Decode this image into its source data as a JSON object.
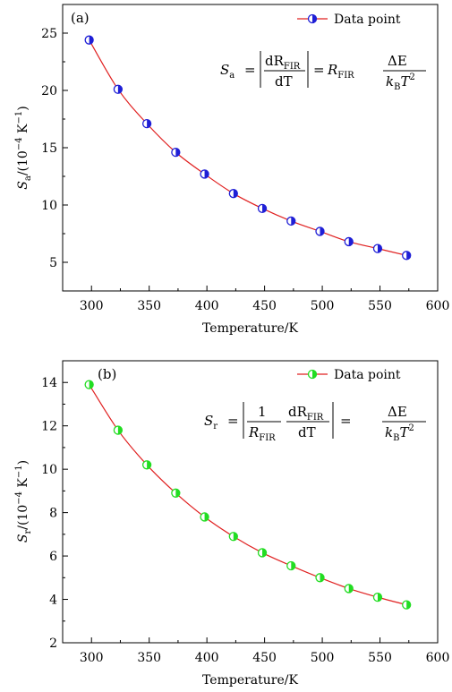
{
  "chart_data": [
    {
      "type": "line",
      "panel_label": "(a)",
      "xlabel": "Temperature/K",
      "ylabel": "S_a/(10^-4 K^-1)",
      "xlim": [
        275,
        600
      ],
      "ylim": [
        2.5,
        27.5
      ],
      "xticks": [
        300,
        350,
        400,
        450,
        500,
        550,
        600
      ],
      "yticks": [
        5,
        10,
        15,
        20,
        25
      ],
      "x": [
        298,
        323,
        348,
        373,
        398,
        423,
        448,
        473,
        498,
        523,
        548,
        573
      ],
      "series": [
        {
          "name": "Data point",
          "marker_color": "#1f1fd6",
          "line_color": "#e02020",
          "values": [
            24.4,
            20.1,
            17.1,
            14.6,
            12.7,
            11.0,
            9.7,
            8.6,
            7.7,
            6.8,
            6.2,
            5.6
          ]
        }
      ],
      "legend": {
        "label": "Data point",
        "placement": "top-right"
      },
      "equation": {
        "lhs": "S",
        "lhs_sub": "a",
        "num": "dR",
        "num_sub": "FIR",
        "den": "dT",
        "mid": "R",
        "mid_sub": "FIR",
        "rnum": "ΔE",
        "rden": "k",
        "rden_sub": "B",
        "rden_tail": "T"
      }
    },
    {
      "type": "line",
      "panel_label": "(b)",
      "xlabel": "Temperature/K",
      "ylabel": "S_r/(10^-4 K^-1)",
      "xlim": [
        275,
        600
      ],
      "ylim": [
        2,
        15
      ],
      "xticks": [
        300,
        350,
        400,
        450,
        500,
        550,
        600
      ],
      "yticks": [
        2,
        4,
        6,
        8,
        10,
        12,
        14
      ],
      "x": [
        298,
        323,
        348,
        373,
        398,
        423,
        448,
        473,
        498,
        523,
        548,
        573
      ],
      "series": [
        {
          "name": "Data point",
          "marker_color": "#22dd22",
          "line_color": "#e02020",
          "values": [
            13.9,
            11.8,
            10.2,
            8.9,
            7.8,
            6.9,
            6.15,
            5.55,
            5.0,
            4.5,
            4.1,
            3.75
          ]
        }
      ],
      "legend": {
        "label": "Data point",
        "placement": "top-right"
      },
      "equation": {
        "lhs": "S",
        "lhs_sub": "r",
        "one": "1",
        "num": "dR",
        "num_sub": "FIR",
        "den": "dT",
        "rden0": "R",
        "rden0_sub": "FIR",
        "rnum": "ΔE",
        "rden": "k",
        "rden_sub": "B",
        "rden_tail": "T"
      }
    }
  ]
}
